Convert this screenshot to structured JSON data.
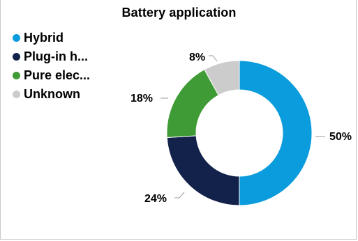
{
  "chart_data": {
    "type": "pie",
    "variant": "donut",
    "title": "Battery application",
    "legend_position": "top-left",
    "legend": [
      "Hybrid",
      "Plug-in h...",
      "Pure elec...",
      "Unknown"
    ],
    "categories": [
      "Hybrid",
      "Plug-in h...",
      "Pure elec...",
      "Unknown"
    ],
    "values": [
      50,
      24,
      18,
      8
    ],
    "data_labels": [
      "50%",
      "24%",
      "18%",
      "8%"
    ],
    "unit": "%",
    "colors": [
      "#0a9cdc",
      "#12224b",
      "#3f9b35",
      "#cccccc"
    ]
  }
}
